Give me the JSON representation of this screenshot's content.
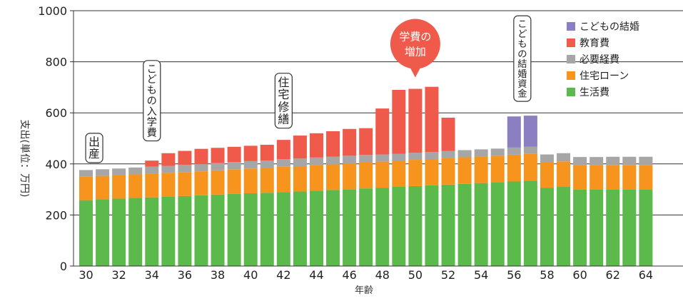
{
  "chart_data": {
    "type": "bar",
    "stacked": true,
    "ylabel": "支出(単位：万円)",
    "xlabel": "年齢",
    "ylim": [
      0,
      1000
    ],
    "yticks": [
      0,
      200,
      400,
      600,
      800,
      1000
    ],
    "grid": true,
    "legend_position": "top-right",
    "categories": [
      30,
      31,
      32,
      33,
      34,
      35,
      36,
      37,
      38,
      39,
      40,
      41,
      42,
      43,
      44,
      45,
      46,
      47,
      48,
      49,
      50,
      51,
      52,
      53,
      54,
      55,
      56,
      57,
      58,
      59,
      60,
      61,
      62,
      63,
      64
    ],
    "xtick_labels": [
      "30",
      "32",
      "34",
      "36",
      "38",
      "40",
      "42",
      "44",
      "46",
      "48",
      "50",
      "52",
      "54",
      "56",
      "58",
      "60",
      "62",
      "64"
    ],
    "series": [
      {
        "name": "生活費",
        "color": "#5cb94b",
        "values": [
          258,
          261,
          264,
          267,
          269,
          272,
          274,
          277,
          280,
          283,
          285,
          287,
          290,
          292,
          295,
          298,
          301,
          304,
          307,
          310,
          313,
          316,
          319,
          322,
          325,
          328,
          331,
          334,
          307,
          310,
          299,
          300,
          300,
          300,
          300
        ]
      },
      {
        "name": "住宅ローン",
        "color": "#f7941d",
        "values": [
          92,
          92,
          92,
          92,
          93,
          93,
          94,
          94,
          95,
          95,
          97,
          97,
          99,
          99,
          100,
          100,
          101,
          101,
          102,
          102,
          103,
          103,
          104,
          104,
          104,
          104,
          105,
          105,
          98,
          100,
          96,
          95,
          96,
          96,
          96
        ]
      },
      {
        "name": "必要経費",
        "color": "#a6a6a6",
        "values": [
          26,
          26,
          26,
          27,
          27,
          27,
          28,
          28,
          28,
          29,
          29,
          29,
          30,
          30,
          30,
          30,
          30,
          30,
          28,
          28,
          28,
          28,
          28,
          28,
          28,
          28,
          28,
          28,
          32,
          32,
          32,
          32,
          32,
          32,
          32
        ]
      },
      {
        "name": "教育費",
        "color": "#ef5a4b",
        "values": [
          0,
          0,
          0,
          0,
          24,
          50,
          55,
          60,
          60,
          60,
          60,
          62,
          75,
          90,
          95,
          100,
          105,
          105,
          180,
          250,
          250,
          255,
          130,
          0,
          0,
          0,
          0,
          0,
          0,
          0,
          0,
          0,
          0,
          0,
          0
        ]
      },
      {
        "name": "こどもの結婚",
        "color": "#8b7fc1",
        "values": [
          0,
          0,
          0,
          0,
          0,
          0,
          0,
          0,
          0,
          0,
          0,
          0,
          0,
          0,
          0,
          0,
          0,
          0,
          0,
          0,
          0,
          0,
          0,
          0,
          0,
          0,
          122,
          122,
          0,
          0,
          0,
          0,
          0,
          0,
          0
        ]
      }
    ],
    "legend_order": [
      "こどもの結婚",
      "教育費",
      "必要経費",
      "住宅ローン",
      "生活費"
    ],
    "annotations": [
      {
        "text": "出産",
        "at": 30.5,
        "vertical": true,
        "top": 520,
        "bottom": 405
      },
      {
        "text": "こどもの入学費",
        "at": 34,
        "vertical": true,
        "top": 805,
        "bottom": 490
      },
      {
        "text": "住宅修繕",
        "at": 42,
        "vertical": true,
        "top": 755,
        "bottom": 540
      },
      {
        "text": "こどもの結婚資金",
        "at": 56.5,
        "vertical": true,
        "top": 980,
        "bottom": 645
      },
      {
        "text": "学費の増加",
        "lines": [
          "学費の",
          "増加"
        ],
        "at": 50,
        "bubble": true,
        "color": "#ef5a4b",
        "cy": 870
      }
    ]
  }
}
